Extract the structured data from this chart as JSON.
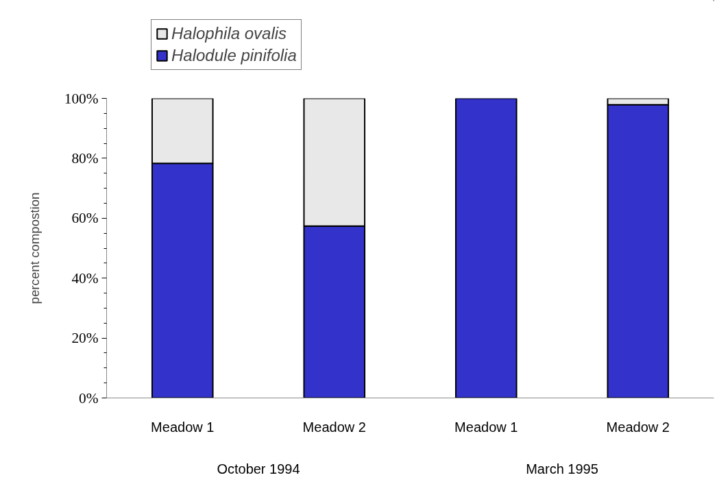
{
  "chart_data": {
    "type": "bar",
    "stacked": true,
    "ylabel": "percent compostion",
    "categories": [
      "Meadow 1",
      "Meadow 2",
      "Meadow 1",
      "Meadow 2"
    ],
    "series": [
      {
        "name": "Halodule pinifolia",
        "color": "#3333cc",
        "values": [
          78.3,
          57.4,
          100,
          97.9
        ]
      },
      {
        "name": "Halophila ovalis",
        "color": "#e8e8e8",
        "values": [
          21.7,
          42.6,
          0,
          2.1
        ]
      }
    ],
    "ylim": [
      0,
      100
    ],
    "yticks": [
      {
        "value": 0,
        "label": "0%"
      },
      {
        "value": 5,
        "label": null
      },
      {
        "value": 10,
        "label": null
      },
      {
        "value": 15,
        "label": null
      },
      {
        "value": 20,
        "label": "20%"
      },
      {
        "value": 25,
        "label": null
      },
      {
        "value": 30,
        "label": null
      },
      {
        "value": 35,
        "label": null
      },
      {
        "value": 40,
        "label": "40%"
      },
      {
        "value": 45,
        "label": null
      },
      {
        "value": 50,
        "label": null
      },
      {
        "value": 55,
        "label": null
      },
      {
        "value": 60,
        "label": "60%"
      },
      {
        "value": 65,
        "label": null
      },
      {
        "value": 70,
        "label": null
      },
      {
        "value": 75,
        "label": null
      },
      {
        "value": 80,
        "label": "80%"
      },
      {
        "value": 85,
        "label": null
      },
      {
        "value": 90,
        "label": null
      },
      {
        "value": 95,
        "label": null
      },
      {
        "value": 100,
        "label": "100%"
      }
    ],
    "annotations": [
      "October 1994",
      "March 1995"
    ],
    "legend": "top left",
    "grid": false
  }
}
